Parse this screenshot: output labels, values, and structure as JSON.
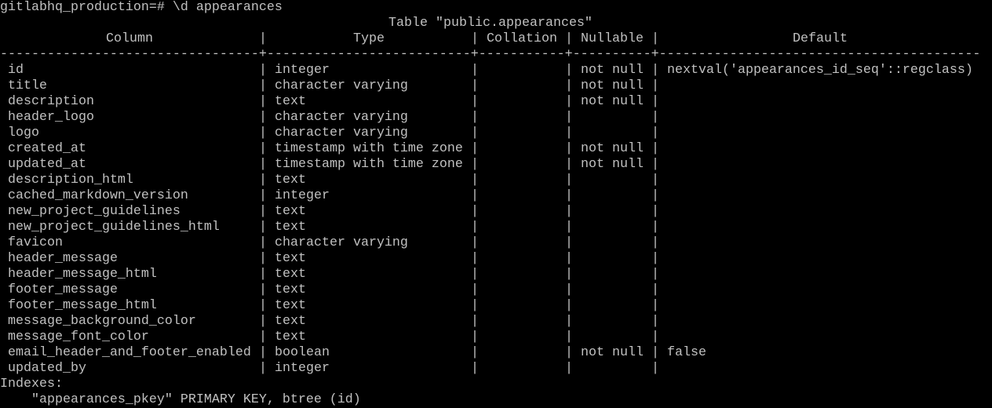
{
  "terminal": {
    "prompt": "gitlabhq_production=# \\d appearances",
    "table_title": "Table \"public.appearances\"",
    "headers": [
      "Column",
      "Type",
      "Collation",
      "Nullable",
      "Default"
    ],
    "rows": [
      [
        "id",
        "integer",
        "",
        "not null",
        "nextval('appearances_id_seq'::regclass)"
      ],
      [
        "title",
        "character varying",
        "",
        "not null",
        ""
      ],
      [
        "description",
        "text",
        "",
        "not null",
        ""
      ],
      [
        "header_logo",
        "character varying",
        "",
        "",
        ""
      ],
      [
        "logo",
        "character varying",
        "",
        "",
        ""
      ],
      [
        "created_at",
        "timestamp with time zone",
        "",
        "not null",
        ""
      ],
      [
        "updated_at",
        "timestamp with time zone",
        "",
        "not null",
        ""
      ],
      [
        "description_html",
        "text",
        "",
        "",
        ""
      ],
      [
        "cached_markdown_version",
        "integer",
        "",
        "",
        ""
      ],
      [
        "new_project_guidelines",
        "text",
        "",
        "",
        ""
      ],
      [
        "new_project_guidelines_html",
        "text",
        "",
        "",
        ""
      ],
      [
        "favicon",
        "character varying",
        "",
        "",
        ""
      ],
      [
        "header_message",
        "text",
        "",
        "",
        ""
      ],
      [
        "header_message_html",
        "text",
        "",
        "",
        ""
      ],
      [
        "footer_message",
        "text",
        "",
        "",
        ""
      ],
      [
        "footer_message_html",
        "text",
        "",
        "",
        ""
      ],
      [
        "message_background_color",
        "text",
        "",
        "",
        ""
      ],
      [
        "message_font_color",
        "text",
        "",
        "",
        ""
      ],
      [
        "email_header_and_footer_enabled",
        "boolean",
        "",
        "not null",
        "false"
      ],
      [
        "updated_by",
        "integer",
        "",
        "",
        ""
      ]
    ],
    "indexes_label": "Indexes:",
    "indexes": [
      "    \"appearances_pkey\" PRIMARY KEY, btree (id)"
    ],
    "colors": {
      "background": "#000000",
      "text": "#c0c0c0"
    }
  }
}
